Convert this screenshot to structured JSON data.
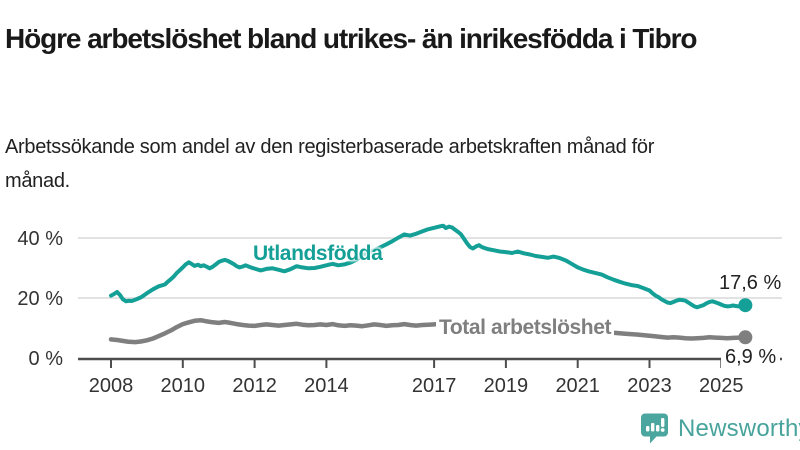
{
  "header": {
    "title": "Högre arbetslöshet bland utrikes- än inrikesfödda i Tibro",
    "subtitle": "Arbetssökande som andel av den registerbaserade arbetskraften månad för månad."
  },
  "chart_data": {
    "type": "line",
    "title": "Högre arbetslöshet bland utrikes- än inrikesfödda i Tibro",
    "subtitle": "Arbetssökande som andel av den registerbaserade arbetskraften månad för månad.",
    "ylabel": "",
    "xlabel": "",
    "unit": "%",
    "grid": true,
    "legend_position": "inline-labels",
    "xlim": [
      2007.8,
      2026.2
    ],
    "ylim": [
      0,
      47
    ],
    "y_ticks": [
      {
        "value": 0,
        "label": "0 %"
      },
      {
        "value": 20,
        "label": "20 %"
      },
      {
        "value": 40,
        "label": "40 %"
      }
    ],
    "x_ticks": [
      {
        "year": 2008,
        "label": "2008"
      },
      {
        "year": 2010,
        "label": "2010"
      },
      {
        "year": 2012,
        "label": "2012"
      },
      {
        "year": 2014,
        "label": "2014"
      },
      {
        "year": 2017,
        "label": "2017"
      },
      {
        "year": 2019,
        "label": "2019"
      },
      {
        "year": 2021,
        "label": "2021"
      },
      {
        "year": 2023,
        "label": "2023"
      },
      {
        "year": 2025,
        "label": "2025"
      }
    ],
    "grid_color": "#d9d9d9",
    "axis_color": "#4d4d4d",
    "tick_label_color": "#333333",
    "series": [
      {
        "name": "Utlandsfödda",
        "color": "#14a096",
        "line_width": 4,
        "end_label": "17,6 %",
        "end_value": 17.6,
        "points": [
          [
            2008.0,
            20.8
          ],
          [
            2008.08,
            21.3
          ],
          [
            2008.17,
            22.0
          ],
          [
            2008.25,
            21.0
          ],
          [
            2008.33,
            19.6
          ],
          [
            2008.42,
            18.9
          ],
          [
            2008.5,
            19.1
          ],
          [
            2008.58,
            19.0
          ],
          [
            2008.67,
            19.4
          ],
          [
            2008.75,
            19.8
          ],
          [
            2008.83,
            20.2
          ],
          [
            2008.92,
            20.9
          ],
          [
            2009.0,
            21.6
          ],
          [
            2009.17,
            22.9
          ],
          [
            2009.33,
            23.9
          ],
          [
            2009.5,
            24.5
          ],
          [
            2009.58,
            25.4
          ],
          [
            2009.67,
            26.3
          ],
          [
            2009.75,
            27.2
          ],
          [
            2009.83,
            28.3
          ],
          [
            2009.92,
            29.3
          ],
          [
            2010.0,
            30.2
          ],
          [
            2010.08,
            31.2
          ],
          [
            2010.17,
            31.9
          ],
          [
            2010.25,
            31.3
          ],
          [
            2010.33,
            30.7
          ],
          [
            2010.42,
            31.1
          ],
          [
            2010.5,
            30.6
          ],
          [
            2010.58,
            30.9
          ],
          [
            2010.67,
            30.4
          ],
          [
            2010.75,
            29.9
          ],
          [
            2010.83,
            30.4
          ],
          [
            2010.92,
            31.2
          ],
          [
            2011.0,
            32.0
          ],
          [
            2011.08,
            32.4
          ],
          [
            2011.17,
            32.7
          ],
          [
            2011.25,
            32.4
          ],
          [
            2011.33,
            31.9
          ],
          [
            2011.42,
            31.3
          ],
          [
            2011.5,
            30.6
          ],
          [
            2011.58,
            30.2
          ],
          [
            2011.67,
            30.5
          ],
          [
            2011.75,
            30.9
          ],
          [
            2011.83,
            30.5
          ],
          [
            2011.92,
            30.1
          ],
          [
            2012.0,
            29.8
          ],
          [
            2012.17,
            29.2
          ],
          [
            2012.33,
            29.7
          ],
          [
            2012.5,
            29.9
          ],
          [
            2012.67,
            29.4
          ],
          [
            2012.83,
            28.9
          ],
          [
            2013.0,
            29.6
          ],
          [
            2013.17,
            30.6
          ],
          [
            2013.33,
            30.2
          ],
          [
            2013.5,
            29.9
          ],
          [
            2013.67,
            30.0
          ],
          [
            2013.83,
            30.4
          ],
          [
            2014.0,
            30.9
          ],
          [
            2014.17,
            31.4
          ],
          [
            2014.33,
            30.9
          ],
          [
            2014.5,
            31.2
          ],
          [
            2014.67,
            31.8
          ],
          [
            2014.83,
            32.7
          ],
          [
            2015.0,
            34.2
          ],
          [
            2015.17,
            35.1
          ],
          [
            2015.33,
            35.9
          ],
          [
            2015.5,
            36.9
          ],
          [
            2015.67,
            37.9
          ],
          [
            2015.83,
            38.9
          ],
          [
            2016.0,
            40.1
          ],
          [
            2016.17,
            41.2
          ],
          [
            2016.33,
            40.8
          ],
          [
            2016.5,
            41.4
          ],
          [
            2016.67,
            42.2
          ],
          [
            2016.83,
            42.9
          ],
          [
            2017.0,
            43.4
          ],
          [
            2017.17,
            43.9
          ],
          [
            2017.25,
            44.1
          ],
          [
            2017.33,
            43.3
          ],
          [
            2017.42,
            43.8
          ],
          [
            2017.5,
            43.5
          ],
          [
            2017.58,
            42.8
          ],
          [
            2017.67,
            42.0
          ],
          [
            2017.75,
            41.2
          ],
          [
            2017.83,
            39.8
          ],
          [
            2017.92,
            38.2
          ],
          [
            2018.0,
            37.0
          ],
          [
            2018.08,
            36.5
          ],
          [
            2018.17,
            37.2
          ],
          [
            2018.25,
            37.6
          ],
          [
            2018.33,
            37.0
          ],
          [
            2018.42,
            36.6
          ],
          [
            2018.5,
            36.3
          ],
          [
            2018.67,
            35.9
          ],
          [
            2018.83,
            35.5
          ],
          [
            2019.0,
            35.3
          ],
          [
            2019.17,
            35.0
          ],
          [
            2019.33,
            35.5
          ],
          [
            2019.5,
            34.9
          ],
          [
            2019.67,
            34.5
          ],
          [
            2019.83,
            34.0
          ],
          [
            2020.0,
            33.7
          ],
          [
            2020.17,
            33.4
          ],
          [
            2020.33,
            33.8
          ],
          [
            2020.5,
            33.3
          ],
          [
            2020.67,
            32.5
          ],
          [
            2020.83,
            31.4
          ],
          [
            2021.0,
            30.2
          ],
          [
            2021.17,
            29.4
          ],
          [
            2021.33,
            28.8
          ],
          [
            2021.5,
            28.3
          ],
          [
            2021.67,
            27.8
          ],
          [
            2021.83,
            26.9
          ],
          [
            2022.0,
            26.1
          ],
          [
            2022.17,
            25.4
          ],
          [
            2022.33,
            24.8
          ],
          [
            2022.5,
            24.3
          ],
          [
            2022.67,
            24.0
          ],
          [
            2022.83,
            23.3
          ],
          [
            2023.0,
            22.5
          ],
          [
            2023.08,
            21.6
          ],
          [
            2023.17,
            20.8
          ],
          [
            2023.25,
            20.3
          ],
          [
            2023.33,
            19.6
          ],
          [
            2023.42,
            19.0
          ],
          [
            2023.5,
            18.5
          ],
          [
            2023.58,
            18.3
          ],
          [
            2023.67,
            18.7
          ],
          [
            2023.75,
            19.1
          ],
          [
            2023.83,
            19.4
          ],
          [
            2023.92,
            19.3
          ],
          [
            2024.0,
            19.1
          ],
          [
            2024.08,
            18.5
          ],
          [
            2024.17,
            17.8
          ],
          [
            2024.25,
            17.2
          ],
          [
            2024.33,
            16.9
          ],
          [
            2024.42,
            17.3
          ],
          [
            2024.5,
            17.6
          ],
          [
            2024.58,
            18.2
          ],
          [
            2024.67,
            18.7
          ],
          [
            2024.75,
            18.9
          ],
          [
            2024.83,
            18.6
          ],
          [
            2024.92,
            18.2
          ],
          [
            2025.0,
            17.8
          ],
          [
            2025.08,
            17.4
          ],
          [
            2025.17,
            17.2
          ],
          [
            2025.25,
            17.3
          ],
          [
            2025.33,
            17.5
          ],
          [
            2025.42,
            17.3
          ],
          [
            2025.5,
            17.2
          ],
          [
            2025.58,
            17.4
          ],
          [
            2025.67,
            17.6
          ]
        ]
      },
      {
        "name": "Total arbetslöshet",
        "color": "#7f7f7f",
        "line_width": 4.5,
        "end_label": "6,9 %",
        "end_value": 6.9,
        "points": [
          [
            2008.0,
            6.2
          ],
          [
            2008.17,
            6.0
          ],
          [
            2008.33,
            5.7
          ],
          [
            2008.5,
            5.4
          ],
          [
            2008.67,
            5.3
          ],
          [
            2008.83,
            5.5
          ],
          [
            2009.0,
            5.9
          ],
          [
            2009.17,
            6.5
          ],
          [
            2009.33,
            7.3
          ],
          [
            2009.5,
            8.2
          ],
          [
            2009.67,
            9.2
          ],
          [
            2009.83,
            10.3
          ],
          [
            2010.0,
            11.3
          ],
          [
            2010.17,
            11.9
          ],
          [
            2010.33,
            12.4
          ],
          [
            2010.5,
            12.6
          ],
          [
            2010.67,
            12.2
          ],
          [
            2010.83,
            11.9
          ],
          [
            2011.0,
            11.7
          ],
          [
            2011.17,
            12.0
          ],
          [
            2011.33,
            11.7
          ],
          [
            2011.5,
            11.3
          ],
          [
            2011.67,
            11.0
          ],
          [
            2011.83,
            10.8
          ],
          [
            2012.0,
            10.7
          ],
          [
            2012.17,
            11.0
          ],
          [
            2012.33,
            11.2
          ],
          [
            2012.5,
            11.0
          ],
          [
            2012.67,
            10.8
          ],
          [
            2012.83,
            11.0
          ],
          [
            2013.0,
            11.2
          ],
          [
            2013.17,
            11.4
          ],
          [
            2013.33,
            11.1
          ],
          [
            2013.5,
            10.9
          ],
          [
            2013.67,
            11.0
          ],
          [
            2013.83,
            11.2
          ],
          [
            2014.0,
            11.0
          ],
          [
            2014.17,
            11.3
          ],
          [
            2014.33,
            10.9
          ],
          [
            2014.5,
            10.7
          ],
          [
            2014.67,
            10.9
          ],
          [
            2014.83,
            10.8
          ],
          [
            2015.0,
            10.6
          ],
          [
            2015.17,
            10.9
          ],
          [
            2015.33,
            11.2
          ],
          [
            2015.5,
            11.0
          ],
          [
            2015.67,
            10.7
          ],
          [
            2015.83,
            10.9
          ],
          [
            2016.0,
            11.0
          ],
          [
            2016.17,
            11.3
          ],
          [
            2016.33,
            11.0
          ],
          [
            2016.5,
            10.8
          ],
          [
            2016.67,
            11.0
          ],
          [
            2016.83,
            11.1
          ],
          [
            2017.0,
            11.2
          ],
          [
            2017.17,
            11.4
          ],
          [
            2017.33,
            11.1
          ],
          [
            2017.5,
            10.9
          ],
          [
            2017.67,
            10.7
          ],
          [
            2017.83,
            10.5
          ],
          [
            2018.0,
            10.3
          ],
          [
            2018.33,
            10.0
          ],
          [
            2018.67,
            9.7
          ],
          [
            2019.0,
            9.4
          ],
          [
            2019.33,
            9.2
          ],
          [
            2019.67,
            9.3
          ],
          [
            2020.0,
            9.7
          ],
          [
            2020.33,
            10.0
          ],
          [
            2020.67,
            9.8
          ],
          [
            2021.0,
            9.5
          ],
          [
            2021.33,
            9.1
          ],
          [
            2021.67,
            8.8
          ],
          [
            2022.0,
            8.4
          ],
          [
            2022.33,
            8.1
          ],
          [
            2022.67,
            7.8
          ],
          [
            2023.0,
            7.4
          ],
          [
            2023.17,
            7.2
          ],
          [
            2023.33,
            7.0
          ],
          [
            2023.5,
            6.8
          ],
          [
            2023.67,
            6.9
          ],
          [
            2023.83,
            6.8
          ],
          [
            2024.0,
            6.6
          ],
          [
            2024.17,
            6.5
          ],
          [
            2024.33,
            6.6
          ],
          [
            2024.5,
            6.7
          ],
          [
            2024.67,
            6.9
          ],
          [
            2024.83,
            6.8
          ],
          [
            2025.0,
            6.7
          ],
          [
            2025.17,
            6.6
          ],
          [
            2025.33,
            6.7
          ],
          [
            2025.5,
            6.8
          ],
          [
            2025.67,
            6.9
          ]
        ]
      }
    ]
  },
  "footer": {
    "brand": "Newsworthy",
    "brand_color": "#48a39d",
    "logo_icon": "bar-chart-speech-bubble"
  }
}
